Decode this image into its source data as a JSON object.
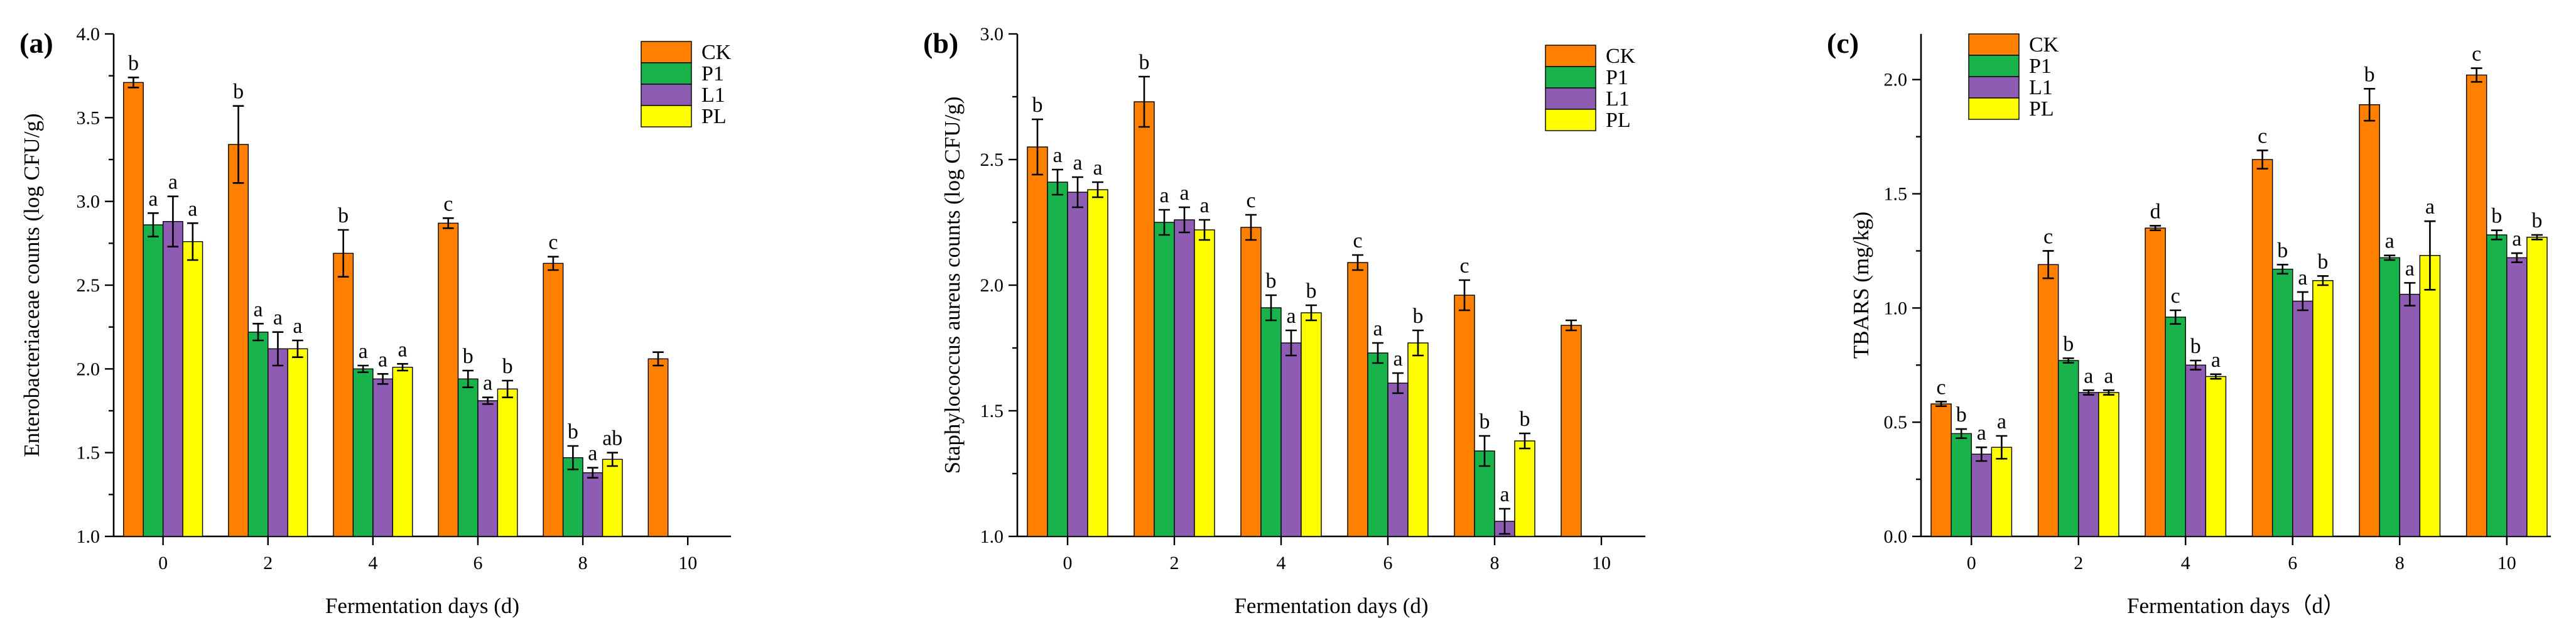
{
  "colors": {
    "CK": "#FF8000",
    "P1": "#18B44B",
    "L1": "#8F5CB3",
    "PL": "#FFFF00"
  },
  "chart_data": [
    {
      "type": "bar",
      "panel_label": "(a)",
      "title": "",
      "xlabel": "Fermentation days (d)",
      "ylabel": "Enterobacteriaceae counts (log CFU/g)",
      "categories": [
        "0",
        "2",
        "4",
        "6",
        "8",
        "10"
      ],
      "ylim": [
        1.0,
        4.0
      ],
      "yticks": [
        "1.0",
        "1.5",
        "2.0",
        "2.5",
        "3.0",
        "3.5",
        "4.0"
      ],
      "legend": [
        "CK",
        "P1",
        "L1",
        "PL"
      ],
      "legend_position": "top-right",
      "series": [
        {
          "name": "CK",
          "values": [
            3.71,
            3.34,
            2.69,
            2.87,
            2.63,
            2.06
          ],
          "errors": [
            0.03,
            0.23,
            0.14,
            0.03,
            0.04,
            0.04
          ],
          "labels": [
            "b",
            "b",
            "b",
            "c",
            "c",
            ""
          ]
        },
        {
          "name": "P1",
          "values": [
            2.86,
            2.22,
            2.0,
            1.94,
            1.47,
            null
          ],
          "errors": [
            0.07,
            0.05,
            0.02,
            0.05,
            0.07,
            null
          ],
          "labels": [
            "a",
            "a",
            "a",
            "b",
            "b",
            ""
          ]
        },
        {
          "name": "L1",
          "values": [
            2.88,
            2.12,
            1.94,
            1.81,
            1.38,
            null
          ],
          "errors": [
            0.15,
            0.1,
            0.03,
            0.02,
            0.03,
            null
          ],
          "labels": [
            "a",
            "a",
            "a",
            "a",
            "a",
            ""
          ]
        },
        {
          "name": "PL",
          "values": [
            2.76,
            2.12,
            2.01,
            1.88,
            1.46,
            null
          ],
          "errors": [
            0.11,
            0.05,
            0.02,
            0.05,
            0.04,
            null
          ],
          "labels": [
            "a",
            "a",
            "a",
            "b",
            "ab",
            ""
          ]
        }
      ]
    },
    {
      "type": "bar",
      "panel_label": "(b)",
      "title": "",
      "xlabel": "Fermentation days (d)",
      "ylabel": "Staphylococcus aureus counts (log CFU/g)",
      "categories": [
        "0",
        "2",
        "4",
        "6",
        "8",
        "10"
      ],
      "ylim": [
        1.0,
        3.0
      ],
      "yticks": [
        "1.0",
        "1.5",
        "2.0",
        "2.5",
        "3.0"
      ],
      "legend": [
        "CK",
        "P1",
        "L1",
        "PL"
      ],
      "legend_position": "top-right",
      "series": [
        {
          "name": "CK",
          "values": [
            2.55,
            2.73,
            2.23,
            2.09,
            1.96,
            1.84
          ],
          "errors": [
            0.11,
            0.1,
            0.05,
            0.03,
            0.06,
            0.02
          ],
          "labels": [
            "b",
            "b",
            "c",
            "c",
            "c",
            ""
          ]
        },
        {
          "name": "P1",
          "values": [
            2.41,
            2.25,
            1.91,
            1.73,
            1.34,
            null
          ],
          "errors": [
            0.05,
            0.05,
            0.05,
            0.04,
            0.06,
            null
          ],
          "labels": [
            "a",
            "a",
            "b",
            "a",
            "b",
            ""
          ]
        },
        {
          "name": "L1",
          "values": [
            2.37,
            2.26,
            1.77,
            1.61,
            1.06,
            null
          ],
          "errors": [
            0.06,
            0.05,
            0.05,
            0.04,
            0.05,
            null
          ],
          "labels": [
            "a",
            "a",
            "a",
            "a",
            "a",
            ""
          ]
        },
        {
          "name": "PL",
          "values": [
            2.38,
            2.22,
            1.89,
            1.77,
            1.38,
            null
          ],
          "errors": [
            0.03,
            0.04,
            0.03,
            0.05,
            0.03,
            null
          ],
          "labels": [
            "a",
            "a",
            "b",
            "b",
            "b",
            ""
          ]
        }
      ]
    },
    {
      "type": "bar",
      "panel_label": "(c)",
      "title": "",
      "xlabel": "Fermentation days（d）",
      "ylabel": "TBARS (mg/kg)",
      "categories": [
        "0",
        "2",
        "4",
        "6",
        "8",
        "10"
      ],
      "ylim": [
        0.0,
        2.2
      ],
      "yticks": [
        "0.0",
        "0.5",
        "1.0",
        "1.5",
        "2.0"
      ],
      "legend": [
        "CK",
        "P1",
        "L1",
        "PL"
      ],
      "legend_position": "top-left",
      "series": [
        {
          "name": "CK",
          "values": [
            0.58,
            1.19,
            1.35,
            1.65,
            1.89,
            2.02
          ],
          "errors": [
            0.01,
            0.06,
            0.01,
            0.04,
            0.07,
            0.03
          ],
          "labels": [
            "c",
            "c",
            "d",
            "c",
            "b",
            "c"
          ]
        },
        {
          "name": "P1",
          "values": [
            0.45,
            0.77,
            0.96,
            1.17,
            1.22,
            1.32
          ],
          "errors": [
            0.02,
            0.01,
            0.03,
            0.02,
            0.01,
            0.02
          ],
          "labels": [
            "b",
            "b",
            "c",
            "b",
            "a",
            "b"
          ]
        },
        {
          "name": "L1",
          "values": [
            0.36,
            0.63,
            0.75,
            1.03,
            1.06,
            1.22
          ],
          "errors": [
            0.03,
            0.01,
            0.02,
            0.04,
            0.05,
            0.02
          ],
          "labels": [
            "a",
            "a",
            "b",
            "a",
            "a",
            "a"
          ]
        },
        {
          "name": "PL",
          "values": [
            0.39,
            0.63,
            0.7,
            1.12,
            1.23,
            1.31
          ],
          "errors": [
            0.05,
            0.01,
            0.01,
            0.02,
            0.15,
            0.01
          ],
          "labels": [
            "a",
            "a",
            "a",
            "b",
            "a",
            "b"
          ]
        }
      ]
    }
  ]
}
